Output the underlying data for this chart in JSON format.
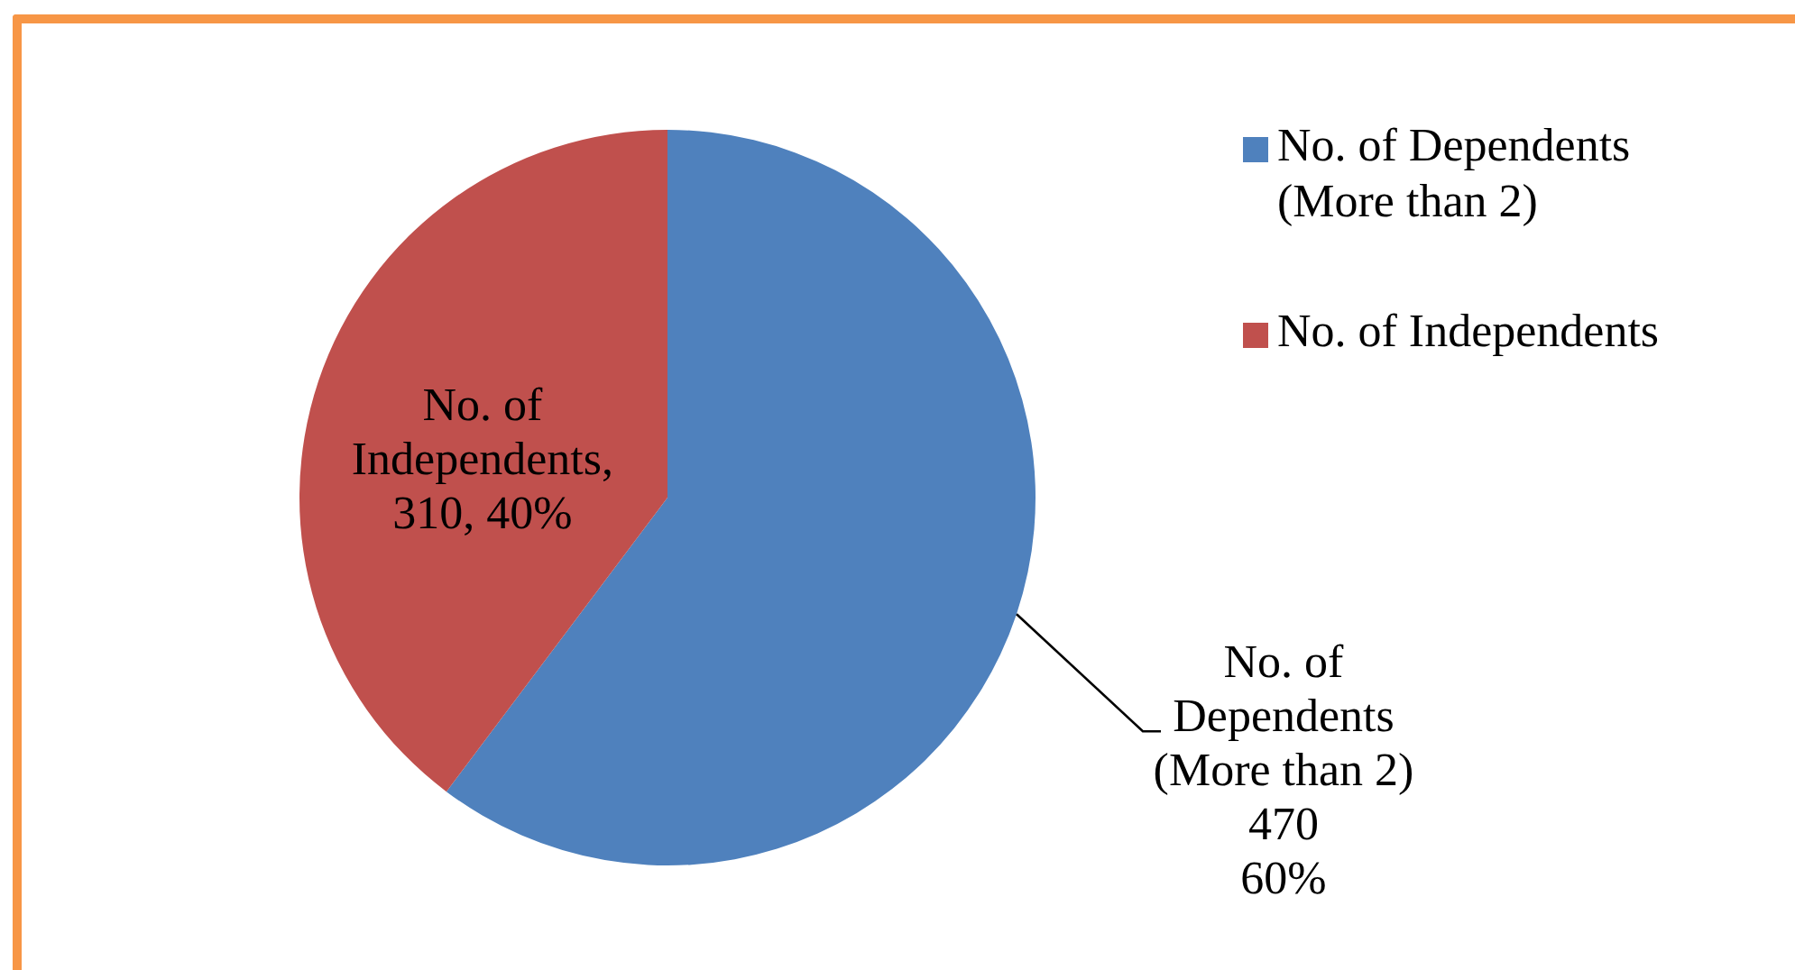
{
  "chart_data": {
    "type": "pie",
    "categories": [
      "No. of Dependents (More than 2)",
      "No. of Independents"
    ],
    "values": [
      470,
      310
    ],
    "colors": [
      "#4f81bd",
      "#c0504d"
    ],
    "value_labels": [
      "No. of\nDependents\n(More than 2)\n470\n60%",
      "No. of\nIndependents,\n310, 40%"
    ],
    "legend": "top right"
  }
}
